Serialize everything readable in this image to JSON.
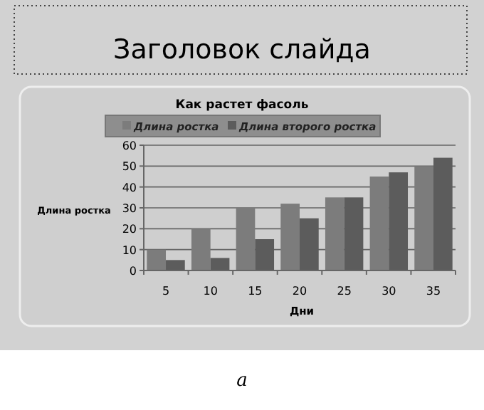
{
  "chart_data": {
    "type": "bar",
    "title": "Как растет фасоль",
    "xlabel": "Дни",
    "ylabel": "Длина ростка",
    "annotations": [
      "Заголовок слайда",
      "а"
    ],
    "categories": [
      "5",
      "10",
      "15",
      "20",
      "25",
      "30",
      "35"
    ],
    "series": [
      {
        "name": "Длина ростка",
        "color": "#7c7c7c",
        "values": [
          10,
          20,
          30,
          32,
          35,
          45,
          50
        ]
      },
      {
        "name": "Длина второго ростка",
        "color": "#5c5c5c",
        "values": [
          5,
          6,
          15,
          25,
          35,
          47,
          54
        ]
      }
    ],
    "ylim": [
      0,
      60
    ],
    "yticks": [
      0,
      10,
      20,
      30,
      40,
      50,
      60
    ],
    "grid": "y",
    "legend": "top"
  }
}
